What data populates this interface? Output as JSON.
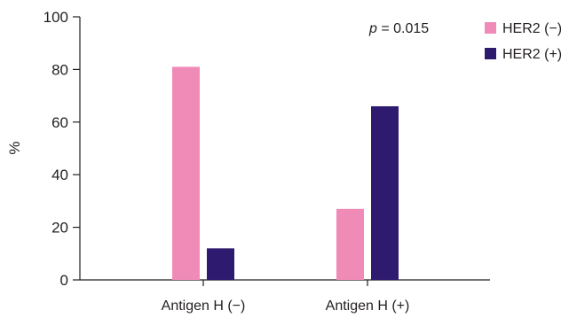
{
  "chart_data": {
    "type": "bar",
    "title": "",
    "xlabel": "",
    "ylabel": "%",
    "ylim": [
      0,
      100
    ],
    "yticks": [
      0,
      20,
      40,
      60,
      80,
      100
    ],
    "grid": false,
    "legend_position": "top-right",
    "categories": [
      "Antigen H (−)",
      "Antigen H (+)"
    ],
    "series": [
      {
        "name": "HER2 (−)",
        "color": "#f08bb8",
        "values": [
          81,
          27
        ]
      },
      {
        "name": "HER2 (+)",
        "color": "#2e1a6e",
        "values": [
          12,
          66
        ]
      }
    ],
    "annotation": {
      "italic_part": "p",
      "rest": " = 0.015"
    }
  }
}
